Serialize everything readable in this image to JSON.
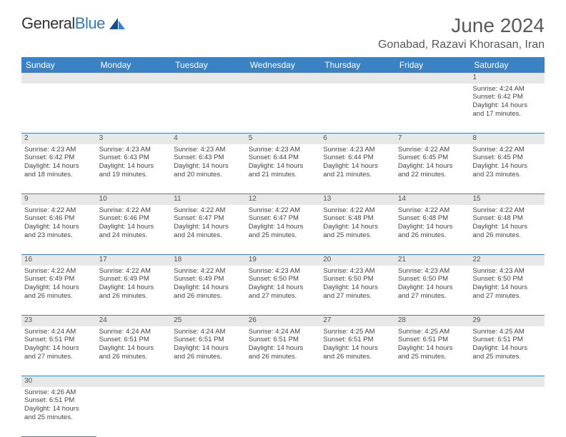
{
  "logo": {
    "text1": "General",
    "text2": "Blue"
  },
  "title": {
    "month_year": "June 2024",
    "location": "Gonabad, Razavi Khorasan, Iran"
  },
  "headers": [
    "Sunday",
    "Monday",
    "Tuesday",
    "Wednesday",
    "Thursday",
    "Friday",
    "Saturday"
  ],
  "header_bg": "#3b82c4",
  "daynum_bg": "#e8e8e8",
  "border_color": "#3b82c4",
  "days": {
    "1": {
      "sr": "4:24 AM",
      "ss": "6:42 PM",
      "dh": "14",
      "dm": "17"
    },
    "2": {
      "sr": "4:23 AM",
      "ss": "6:42 PM",
      "dh": "14",
      "dm": "18"
    },
    "3": {
      "sr": "4:23 AM",
      "ss": "6:43 PM",
      "dh": "14",
      "dm": "19"
    },
    "4": {
      "sr": "4:23 AM",
      "ss": "6:43 PM",
      "dh": "14",
      "dm": "20"
    },
    "5": {
      "sr": "4:23 AM",
      "ss": "6:44 PM",
      "dh": "14",
      "dm": "21"
    },
    "6": {
      "sr": "4:23 AM",
      "ss": "6:44 PM",
      "dh": "14",
      "dm": "21"
    },
    "7": {
      "sr": "4:22 AM",
      "ss": "6:45 PM",
      "dh": "14",
      "dm": "22"
    },
    "8": {
      "sr": "4:22 AM",
      "ss": "6:45 PM",
      "dh": "14",
      "dm": "23"
    },
    "9": {
      "sr": "4:22 AM",
      "ss": "6:46 PM",
      "dh": "14",
      "dm": "23"
    },
    "10": {
      "sr": "4:22 AM",
      "ss": "6:46 PM",
      "dh": "14",
      "dm": "24"
    },
    "11": {
      "sr": "4:22 AM",
      "ss": "6:47 PM",
      "dh": "14",
      "dm": "24"
    },
    "12": {
      "sr": "4:22 AM",
      "ss": "6:47 PM",
      "dh": "14",
      "dm": "25"
    },
    "13": {
      "sr": "4:22 AM",
      "ss": "6:48 PM",
      "dh": "14",
      "dm": "25"
    },
    "14": {
      "sr": "4:22 AM",
      "ss": "6:48 PM",
      "dh": "14",
      "dm": "26"
    },
    "15": {
      "sr": "4:22 AM",
      "ss": "6:48 PM",
      "dh": "14",
      "dm": "26"
    },
    "16": {
      "sr": "4:22 AM",
      "ss": "6:49 PM",
      "dh": "14",
      "dm": "26"
    },
    "17": {
      "sr": "4:22 AM",
      "ss": "6:49 PM",
      "dh": "14",
      "dm": "26"
    },
    "18": {
      "sr": "4:22 AM",
      "ss": "6:49 PM",
      "dh": "14",
      "dm": "26"
    },
    "19": {
      "sr": "4:23 AM",
      "ss": "6:50 PM",
      "dh": "14",
      "dm": "27"
    },
    "20": {
      "sr": "4:23 AM",
      "ss": "6:50 PM",
      "dh": "14",
      "dm": "27"
    },
    "21": {
      "sr": "4:23 AM",
      "ss": "6:50 PM",
      "dh": "14",
      "dm": "27"
    },
    "22": {
      "sr": "4:23 AM",
      "ss": "6:50 PM",
      "dh": "14",
      "dm": "27"
    },
    "23": {
      "sr": "4:24 AM",
      "ss": "6:51 PM",
      "dh": "14",
      "dm": "27"
    },
    "24": {
      "sr": "4:24 AM",
      "ss": "6:51 PM",
      "dh": "14",
      "dm": "26"
    },
    "25": {
      "sr": "4:24 AM",
      "ss": "6:51 PM",
      "dh": "14",
      "dm": "26"
    },
    "26": {
      "sr": "4:24 AM",
      "ss": "6:51 PM",
      "dh": "14",
      "dm": "26"
    },
    "27": {
      "sr": "4:25 AM",
      "ss": "6:51 PM",
      "dh": "14",
      "dm": "26"
    },
    "28": {
      "sr": "4:25 AM",
      "ss": "6:51 PM",
      "dh": "14",
      "dm": "25"
    },
    "29": {
      "sr": "4:25 AM",
      "ss": "6:51 PM",
      "dh": "14",
      "dm": "25"
    },
    "30": {
      "sr": "4:26 AM",
      "ss": "6:51 PM",
      "dh": "14",
      "dm": "25"
    }
  },
  "weeks": [
    [
      null,
      null,
      null,
      null,
      null,
      null,
      "1"
    ],
    [
      "2",
      "3",
      "4",
      "5",
      "6",
      "7",
      "8"
    ],
    [
      "9",
      "10",
      "11",
      "12",
      "13",
      "14",
      "15"
    ],
    [
      "16",
      "17",
      "18",
      "19",
      "20",
      "21",
      "22"
    ],
    [
      "23",
      "24",
      "25",
      "26",
      "27",
      "28",
      "29"
    ],
    [
      "30",
      null,
      null,
      null,
      null,
      null,
      null
    ]
  ],
  "labels": {
    "sunrise": "Sunrise:",
    "sunset": "Sunset:",
    "daylight": "Daylight:",
    "hours": "hours",
    "and": "and",
    "minutes": "minutes."
  }
}
